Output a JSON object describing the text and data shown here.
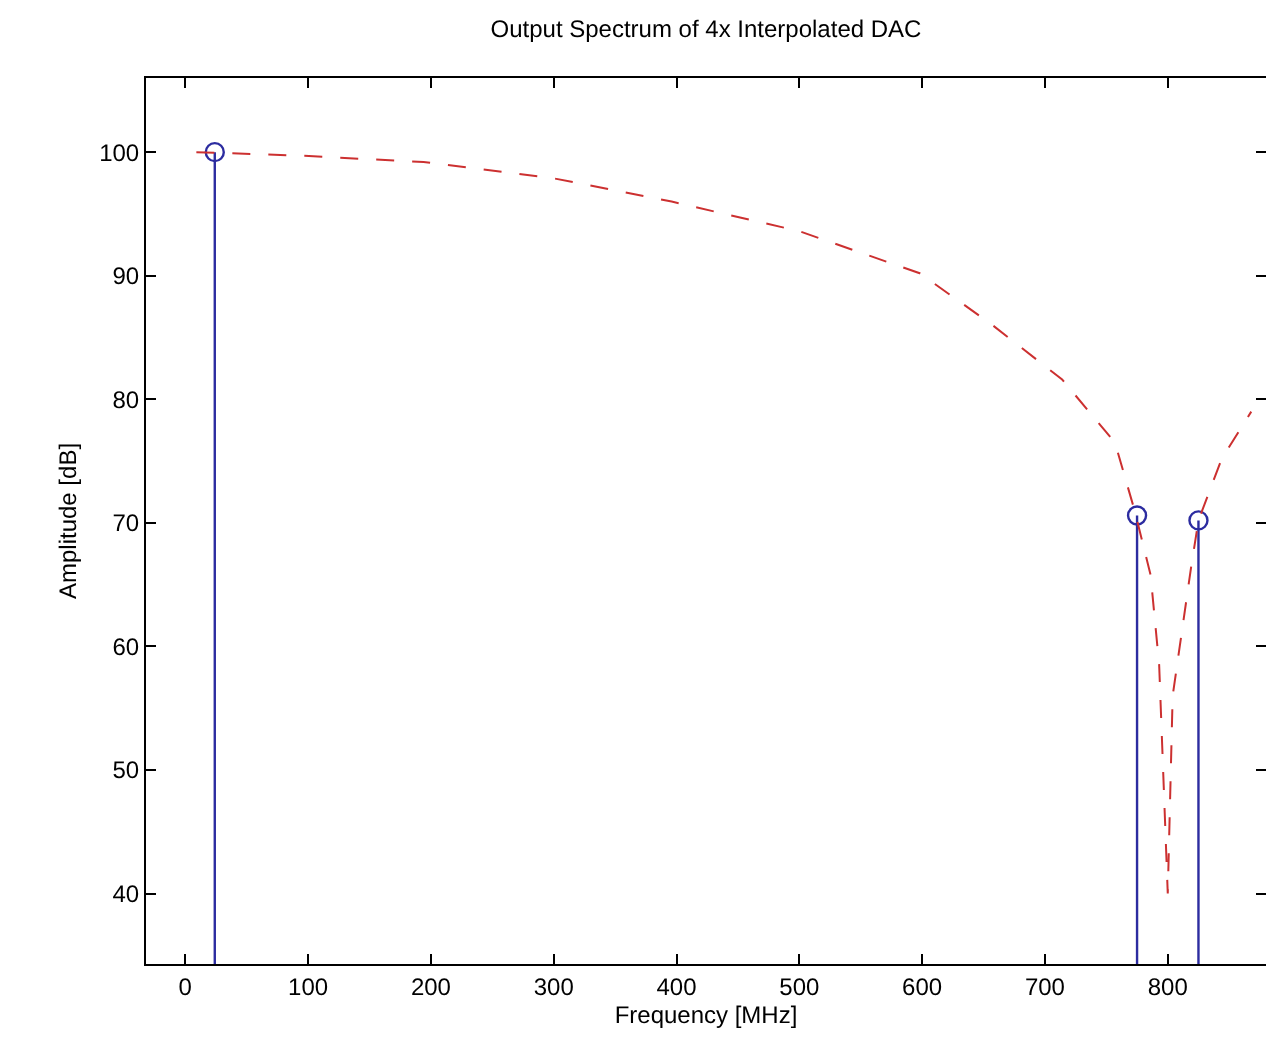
{
  "chart_data": {
    "type": "line",
    "title": "Output Spectrum of 4x Interpolated DAC",
    "xlabel": "Frequency [MHz]",
    "ylabel": "Amplitude [dB]",
    "xlim": [
      -32,
      880
    ],
    "ylim": [
      34.3,
      106
    ],
    "xticks": [
      0,
      100,
      200,
      300,
      400,
      500,
      600,
      700,
      800
    ],
    "yticks": [
      40,
      50,
      60,
      70,
      80,
      90,
      100
    ],
    "grid": false,
    "series": [
      {
        "type": "lollipop",
        "color": "#2c2ca0",
        "marker": "circle",
        "x": [
          24,
          775,
          825
        ],
        "values": [
          100,
          70.6,
          70.2
        ]
      },
      {
        "color": "#cc3030",
        "line_style": "dashed",
        "marker": "none",
        "x": [
          9,
          97,
          194,
          299,
          396,
          500,
          598,
          656,
          714,
          757,
          773,
          786,
          793,
          800,
          804,
          819,
          825,
          844,
          868
        ],
        "values": [
          100,
          99.7,
          99.2,
          97.9,
          96,
          93.6,
          90.2,
          86.1,
          81.6,
          76.5,
          71,
          65.8,
          58.5,
          40,
          56,
          66.4,
          70.2,
          75.2,
          79
        ]
      }
    ]
  }
}
